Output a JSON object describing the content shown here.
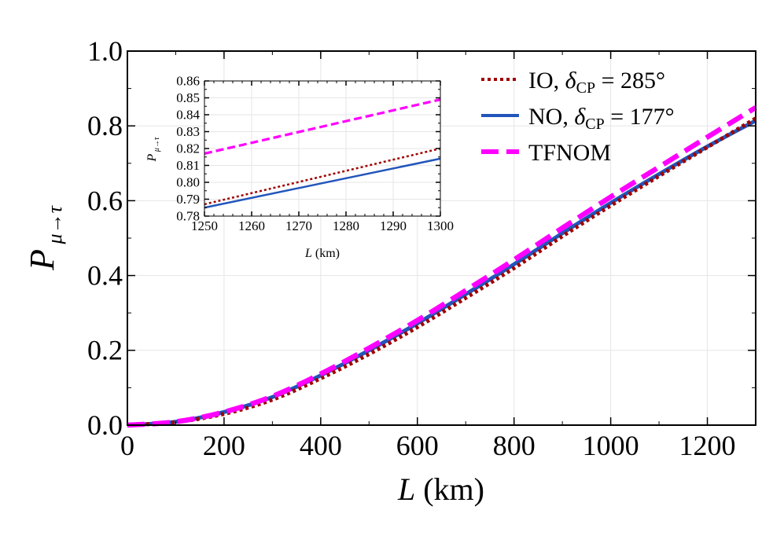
{
  "chart_data": [
    {
      "type": "line",
      "xlabel": "L (km)",
      "ylabel": "P μ→τ",
      "xlim": [
        0,
        1300
      ],
      "ylim": [
        0,
        1.0
      ],
      "xticks": [
        "0",
        "200",
        "400",
        "600",
        "800",
        "1000",
        "1200"
      ],
      "yticks": [
        "0.0",
        "0.2",
        "0.4",
        "0.6",
        "0.8",
        "1.0"
      ],
      "grid": true,
      "legend_position": "top-right",
      "x": [
        0,
        100,
        200,
        300,
        400,
        500,
        600,
        700,
        800,
        900,
        1000,
        1100,
        1200,
        1300
      ],
      "series": [
        {
          "name": "IO, δCP = 285°",
          "color": "#a00000",
          "style": "dotted",
          "values": [
            0,
            0.008,
            0.03,
            0.068,
            0.125,
            0.19,
            0.262,
            0.34,
            0.42,
            0.505,
            0.587,
            0.666,
            0.743,
            0.82
          ]
        },
        {
          "name": "NO, δCP = 177°",
          "color": "#2255bb",
          "style": "solid",
          "values": [
            0,
            0.009,
            0.035,
            0.075,
            0.133,
            0.2,
            0.272,
            0.35,
            0.43,
            0.513,
            0.594,
            0.671,
            0.745,
            0.814
          ]
        },
        {
          "name": "TFNOM",
          "color": "#ff00ff",
          "style": "dashed",
          "values": [
            0,
            0.009,
            0.035,
            0.077,
            0.137,
            0.206,
            0.28,
            0.36,
            0.442,
            0.527,
            0.61,
            0.69,
            0.77,
            0.849
          ]
        }
      ]
    },
    {
      "type": "line",
      "xlabel": "L (km)",
      "ylabel": "P μ→τ",
      "xlim": [
        1250,
        1300
      ],
      "ylim": [
        0.78,
        0.86
      ],
      "xticks": [
        "1250",
        "1260",
        "1270",
        "1280",
        "1290",
        "1300"
      ],
      "yticks": [
        "0.78",
        "0.79",
        "0.80",
        "0.81",
        "0.82",
        "0.83",
        "0.84",
        "0.85",
        "0.86"
      ],
      "grid": true,
      "x": [
        1250,
        1300
      ],
      "series": [
        {
          "color": "#a00000",
          "style": "dotted",
          "values": [
            0.787,
            0.82
          ]
        },
        {
          "color": "#2255bb",
          "style": "solid",
          "values": [
            0.785,
            0.814
          ]
        },
        {
          "color": "#ff00ff",
          "style": "dashed",
          "values": [
            0.817,
            0.849
          ]
        }
      ]
    }
  ]
}
